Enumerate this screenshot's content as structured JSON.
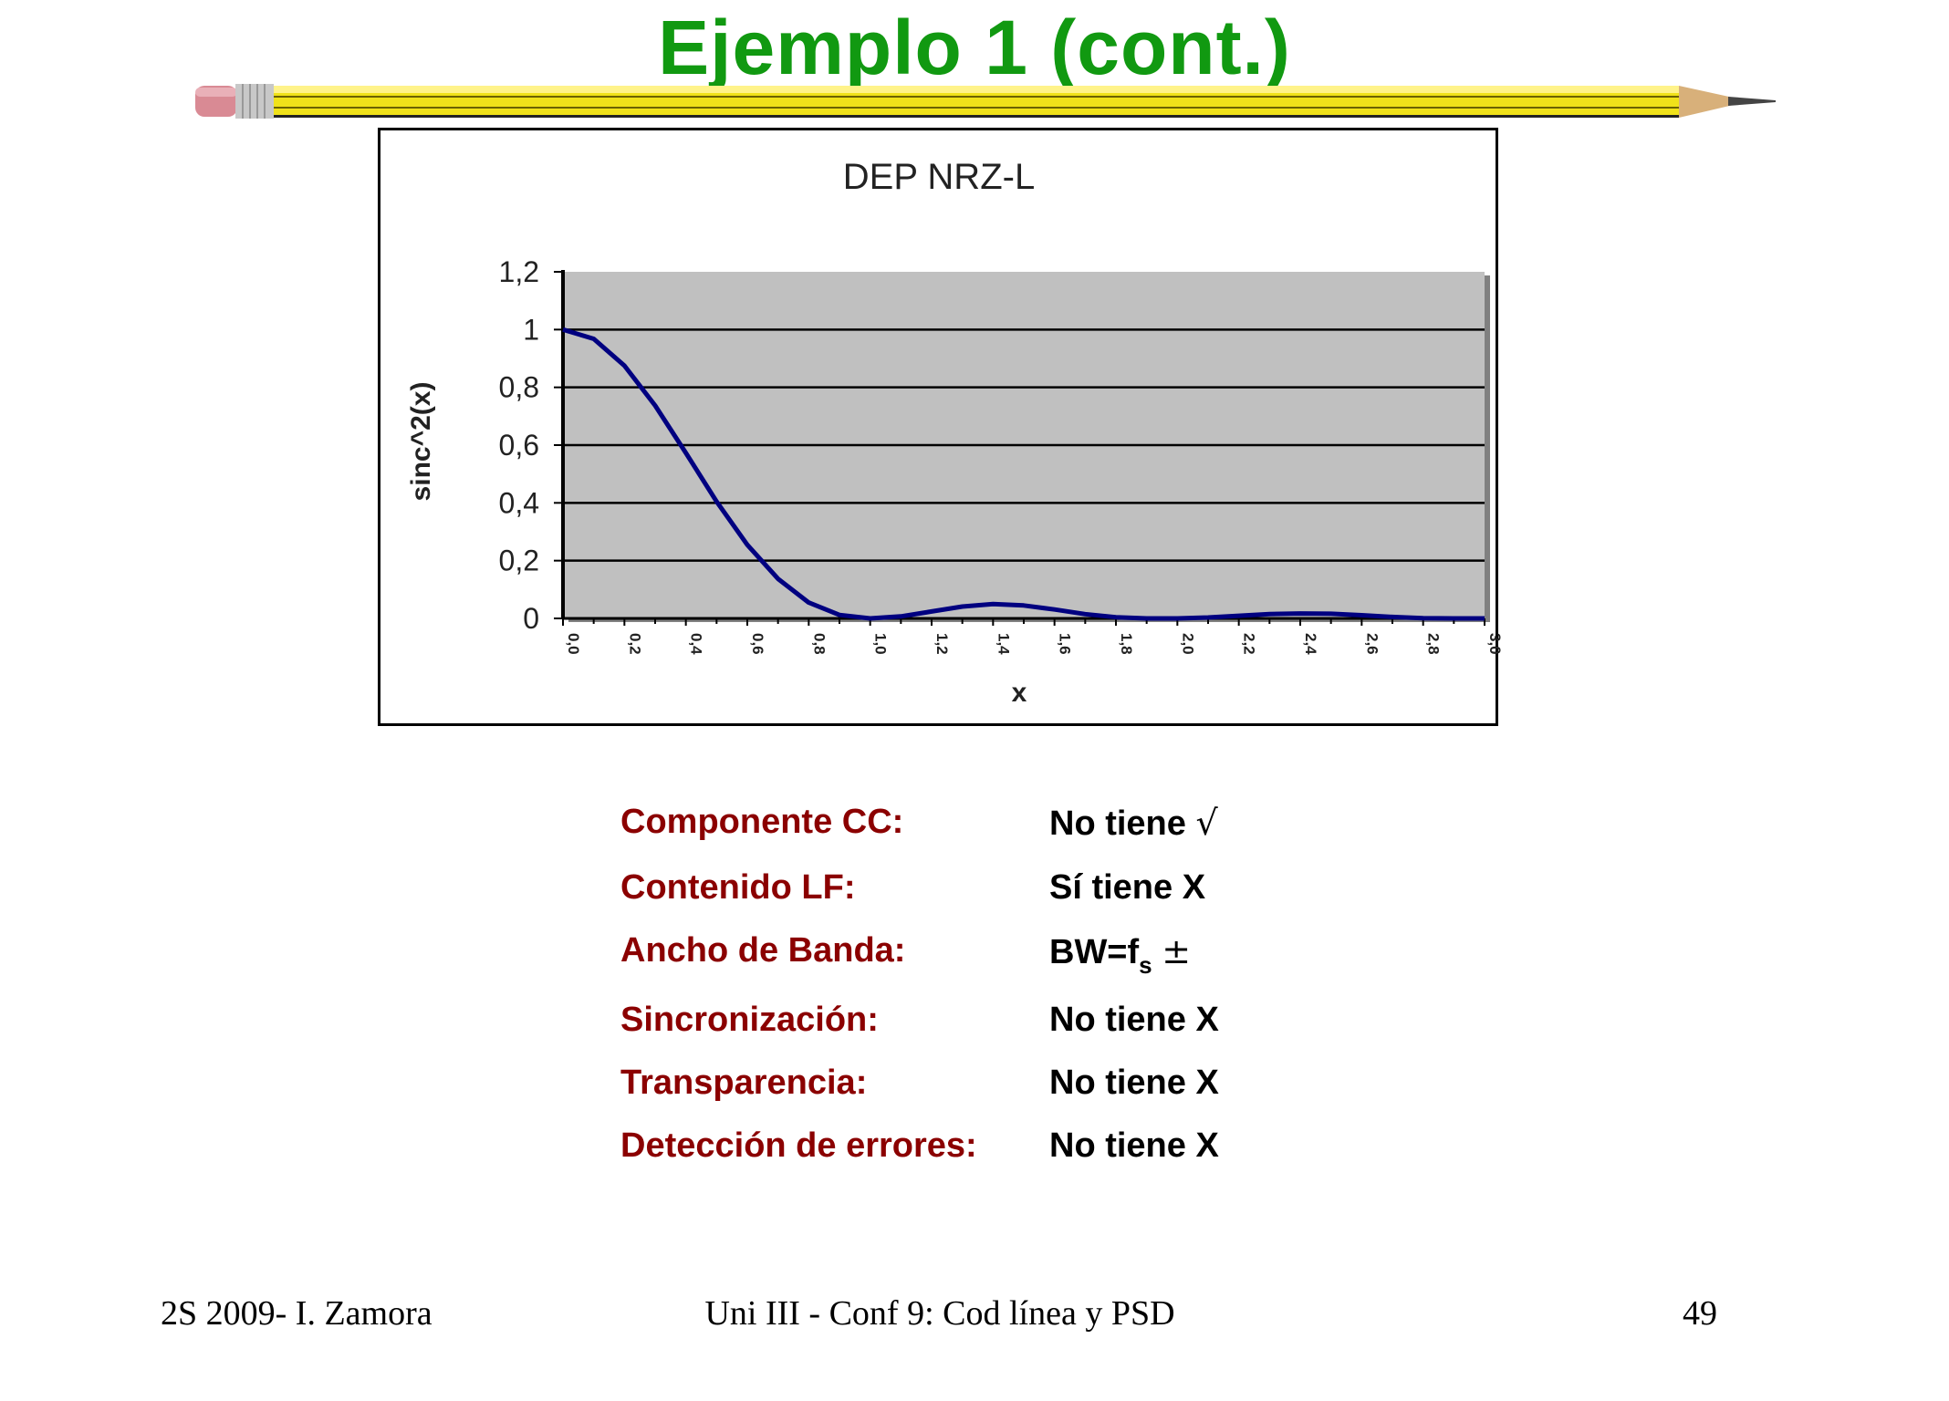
{
  "slide": {
    "title": "Ejemplo 1 (cont.)",
    "title_color": "#119911"
  },
  "chart_data": {
    "type": "line",
    "title": "DEP NRZ-L",
    "xlabel": "x",
    "ylabel": "sinc^2(x)",
    "xlim": [
      0,
      3.0
    ],
    "ylim": [
      0,
      1.2
    ],
    "x_ticks": [
      "0,0",
      "0,2",
      "0,4",
      "0,6",
      "0,8",
      "1,0",
      "1,2",
      "1,4",
      "1,6",
      "1,8",
      "2,0",
      "2,2",
      "2,4",
      "2,6",
      "2,8",
      "3,0"
    ],
    "y_ticks": [
      "0",
      "0,2",
      "0,4",
      "0,6",
      "0,8",
      "1",
      "1,2"
    ],
    "grid": true,
    "plot_background": "#c0c0c0",
    "line_color": "#000080",
    "series": [
      {
        "x": [
          0.0,
          0.1,
          0.2,
          0.3,
          0.4,
          0.5,
          0.6,
          0.7,
          0.8,
          0.9,
          1.0,
          1.1,
          1.2,
          1.3,
          1.4,
          1.5,
          1.6,
          1.7,
          1.8,
          1.9,
          2.0,
          2.1,
          2.2,
          2.3,
          2.4,
          2.5,
          2.6,
          2.7,
          2.8,
          2.9,
          3.0
        ],
        "values": [
          1.0,
          0.968,
          0.875,
          0.737,
          0.573,
          0.405,
          0.255,
          0.137,
          0.055,
          0.012,
          0.0,
          0.007,
          0.024,
          0.041,
          0.05,
          0.045,
          0.031,
          0.015,
          0.004,
          0.0,
          0.0,
          0.003,
          0.009,
          0.015,
          0.017,
          0.016,
          0.011,
          0.005,
          0.001,
          0.0,
          0.0
        ]
      }
    ]
  },
  "properties": [
    {
      "label": "Componente CC:",
      "value": "No tiene",
      "mark": "√"
    },
    {
      "label": "Contenido LF:",
      "value": "Sí tiene X",
      "mark": ""
    },
    {
      "label": "Ancho de Banda:",
      "value": "BW=f",
      "sub": "s",
      "mark": "±"
    },
    {
      "label": "Sincronización:",
      "value": "No tiene X",
      "mark": ""
    },
    {
      "label": "Transparencia:",
      "value": "No tiene X",
      "mark": ""
    },
    {
      "label": "Detección de errores:",
      "value": "No tiene X",
      "mark": ""
    }
  ],
  "footer": {
    "left": "2S 2009- I. Zamora",
    "center": "Uni III - Conf 9: Cod línea y PSD",
    "page": "49"
  }
}
